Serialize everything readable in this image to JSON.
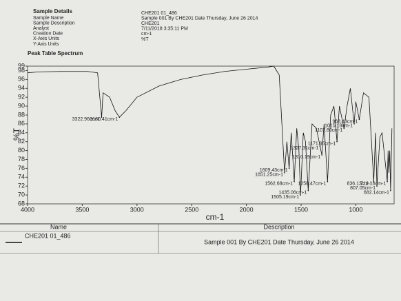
{
  "sample_details": {
    "title": "Sample Details",
    "fields": [
      {
        "label": "Sample Name",
        "value": "CHE201 01_486"
      },
      {
        "label": "Sample Description",
        "value": "Sample 001 By CHE201 Date Thursday, June 26 2014"
      },
      {
        "label": "Analyst",
        "value": "CHE201"
      },
      {
        "label": "Creation Date",
        "value": "7/11/2018 3:35:11 PM"
      },
      {
        "label": "X-Axis Units",
        "value": "cm-1"
      },
      {
        "label": "Y-Axis Units",
        "value": "%T"
      }
    ]
  },
  "section_title": "Peak Table Spectrum",
  "chart_data": {
    "type": "line",
    "x_label": "cm-1",
    "y_label": "%T",
    "color": "#111111",
    "x": [
      4000,
      3900,
      3700,
      3450,
      3360,
      3322.96,
      3310,
      3250,
      3200,
      3160.41,
      3100,
      3000,
      2800,
      2600,
      2400,
      2200,
      2000,
      1800,
      1750,
      1700,
      1680,
      1651.25,
      1630,
      1609.43,
      1590,
      1562.68,
      1540,
      1520,
      1505.19,
      1480,
      1460,
      1435.06,
      1400,
      1360,
      1327.31,
      1310.19,
      1290,
      1258.47,
      1230,
      1200,
      1171.95,
      1150,
      1107.8,
      1080,
      1050,
      1015.18,
      1000,
      968.43,
      930,
      880,
      836.13,
      820,
      807.05,
      780,
      760,
      712.16,
      705,
      698.28,
      690,
      682.14,
      675.04,
      670
    ],
    "values": [
      97.5,
      97.7,
      97.8,
      97.8,
      97.5,
      87.5,
      93,
      92,
      89,
      87.5,
      89,
      92,
      94.5,
      96,
      97,
      97.8,
      98.3,
      98.8,
      99,
      97,
      88,
      75,
      82,
      76,
      84,
      73,
      85,
      80,
      70,
      84,
      82,
      71,
      86,
      85,
      81,
      79,
      86,
      73,
      88,
      90,
      82,
      90,
      85,
      90,
      94,
      86,
      91,
      87,
      93,
      92,
      73,
      84,
      72,
      83,
      84,
      73,
      80,
      75,
      80,
      71,
      79,
      85
    ],
    "xlim": [
      4000,
      650
    ],
    "ylim": [
      68,
      99
    ],
    "xticks": [
      4000,
      3500,
      3000,
      2500,
      2000,
      1500,
      1000
    ],
    "yticks": [
      68,
      70,
      72,
      74,
      76,
      78,
      80,
      82,
      84,
      86,
      88,
      90,
      92,
      94,
      96,
      98,
      99
    ],
    "annotations": [
      {
        "x": 3322.96,
        "y": 87.5,
        "label": "3322.96cm-1"
      },
      {
        "x": 3160.41,
        "y": 87.5,
        "label": "3160.41cm-1"
      },
      {
        "x": 1651.25,
        "y": 75,
        "label": "1651.25cm-1"
      },
      {
        "x": 1609.43,
        "y": 76,
        "label": "1609.43cm-1"
      },
      {
        "x": 1562.68,
        "y": 73,
        "label": "1562.68cm-1"
      },
      {
        "x": 1505.19,
        "y": 70,
        "label": "1505.19cm-1"
      },
      {
        "x": 1435.06,
        "y": 71,
        "label": "1435.06cm-1"
      },
      {
        "x": 1327.31,
        "y": 81,
        "label": "1327.31cm-1"
      },
      {
        "x": 1310.19,
        "y": 79,
        "label": "1310.19cm-1"
      },
      {
        "x": 1258.47,
        "y": 73,
        "label": "1258.47cm-1"
      },
      {
        "x": 1171.95,
        "y": 82,
        "label": "1171.95cm-1"
      },
      {
        "x": 1107.8,
        "y": 85,
        "label": "1107.80cm-1"
      },
      {
        "x": 1015.18,
        "y": 86,
        "label": "1015.18cm-1"
      },
      {
        "x": 968.43,
        "y": 87,
        "label": "968.43cm-1"
      },
      {
        "x": 836.13,
        "y": 73,
        "label": "836.13cm-1"
      },
      {
        "x": 807.05,
        "y": 72,
        "label": "807.05cm-1"
      },
      {
        "x": 712.16,
        "y": 73,
        "label": "712.16cm-1"
      },
      {
        "x": 682.14,
        "y": 71,
        "label": "682.14cm-1"
      }
    ]
  },
  "table": {
    "columns": [
      "Name",
      "Description"
    ],
    "rows": [
      [
        "CHE201 01_486",
        "Sample 001 By CHE201 Date Thursday, June 26 2014"
      ]
    ]
  }
}
